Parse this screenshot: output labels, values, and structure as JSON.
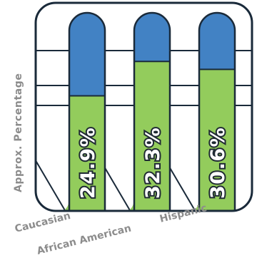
{
  "chart_data": {
    "type": "bar",
    "ylabel": "Approx. Percentage",
    "categories": [
      "Caucasian",
      "African American",
      "Hispanic"
    ],
    "values": [
      24.9,
      32.3,
      30.6
    ],
    "value_labels": [
      "24.9%",
      "32.3%",
      "30.6%"
    ],
    "ylim": [
      0,
      40
    ],
    "grid": true,
    "colors": {
      "fill": "#93cc5c",
      "background_bar": "#4282c4",
      "outline": "#1a2a3a",
      "label_text": "#ffffff",
      "axis_label": "#8c8c8c"
    }
  }
}
